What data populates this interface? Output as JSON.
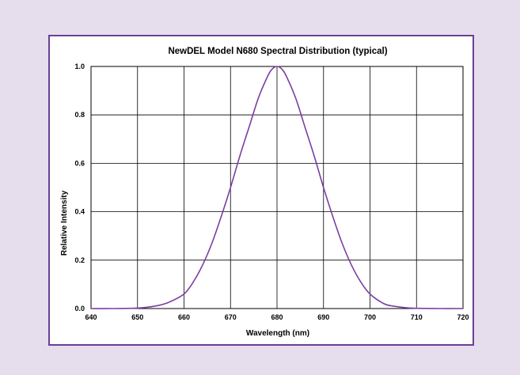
{
  "chart_data": {
    "type": "line",
    "title": "NewDEL Model N680 Spectral Distribution (typical)",
    "xlabel": "Wavelength (nm)",
    "ylabel": "Relative Intensity",
    "xlim": [
      640,
      720
    ],
    "ylim": [
      0,
      1.0
    ],
    "x_ticks": [
      "640",
      "650",
      "660",
      "670",
      "680",
      "690",
      "700",
      "710",
      "720"
    ],
    "y_ticks": [
      "0.0",
      "0.2",
      "0.4",
      "0.6",
      "0.8",
      "1.0"
    ],
    "grid": true,
    "series": [
      {
        "color": "#7b3fa0",
        "x": [
          640,
          645,
          650,
          652,
          655,
          657,
          660,
          662,
          664,
          666,
          668,
          670,
          672,
          674,
          676,
          678,
          679,
          680,
          681,
          682,
          684,
          686,
          688,
          690,
          692,
          694,
          696,
          698,
          700,
          703,
          705,
          708,
          710,
          715,
          720
        ],
        "y": [
          0.0,
          0.0,
          0.002,
          0.005,
          0.015,
          0.028,
          0.06,
          0.11,
          0.18,
          0.27,
          0.38,
          0.5,
          0.63,
          0.75,
          0.87,
          0.96,
          0.99,
          1.0,
          0.99,
          0.96,
          0.87,
          0.75,
          0.63,
          0.5,
          0.38,
          0.27,
          0.18,
          0.11,
          0.06,
          0.02,
          0.01,
          0.003,
          0.001,
          0.0,
          0.0
        ]
      }
    ]
  }
}
